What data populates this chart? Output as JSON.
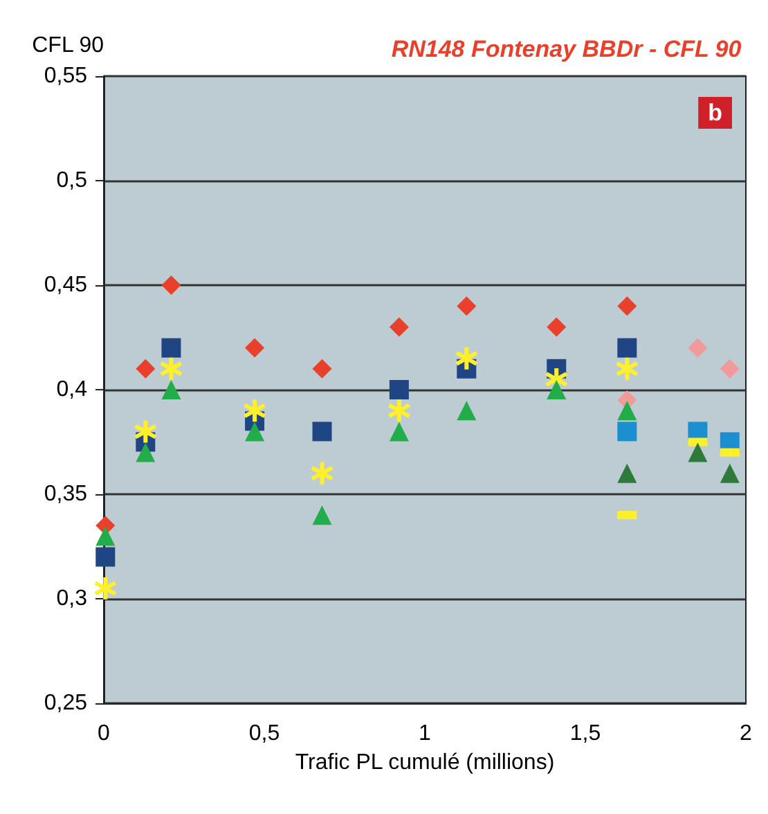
{
  "chart_data": {
    "type": "scatter",
    "title": "RN148 Fontenay BBDr - CFL 90",
    "xlabel": "Trafic PL cumulé (millions)",
    "ylabel": "CFL 90",
    "annotations": [
      "b"
    ],
    "xlim": [
      0,
      2
    ],
    "xticks": [
      0,
      {
        "value": 0.5,
        "label": "0,5"
      },
      1,
      {
        "value": 1.5,
        "label": "1,5"
      },
      2
    ],
    "ylim": [
      0.25,
      0.55
    ],
    "yticks": [
      {
        "value": 0.25,
        "label": "0,25"
      },
      {
        "value": 0.3,
        "label": "0,3"
      },
      {
        "value": 0.35,
        "label": "0,35"
      },
      {
        "value": 0.4,
        "label": "0,4"
      },
      {
        "value": 0.45,
        "label": "0,45"
      },
      {
        "value": 0.5,
        "label": "0,5"
      },
      {
        "value": 0.55,
        "label": "0,55"
      }
    ],
    "grid": "y",
    "series": [
      {
        "color": "#e8402a",
        "marker": "diamond",
        "x": [
          0.005,
          0.13,
          0.21,
          0.47,
          0.68,
          0.92,
          1.13,
          1.41,
          1.63
        ],
        "values": [
          0.335,
          0.41,
          0.45,
          0.42,
          0.41,
          0.43,
          0.44,
          0.43,
          0.44
        ]
      },
      {
        "color": "#f09a9a",
        "marker": "diamond",
        "x": [
          1.63,
          1.85,
          1.95
        ],
        "values": [
          0.395,
          0.42,
          0.41
        ]
      },
      {
        "color": "#1f4585",
        "marker": "square",
        "x": [
          0.005,
          0.13,
          0.21,
          0.47,
          0.68,
          0.92,
          1.13,
          1.41,
          1.63
        ],
        "values": [
          0.32,
          0.375,
          0.42,
          0.385,
          0.38,
          0.4,
          0.41,
          0.41,
          0.42
        ]
      },
      {
        "color": "#1b8fd0",
        "marker": "square",
        "x": [
          1.63,
          1.85,
          1.95
        ],
        "values": [
          0.38,
          0.38,
          0.375
        ]
      },
      {
        "color": "#fff02a",
        "marker": "cross",
        "x": [
          0.005,
          0.13,
          0.21,
          0.47,
          0.68,
          0.92,
          1.13,
          1.41,
          1.63
        ],
        "values": [
          0.305,
          0.38,
          0.41,
          0.39,
          0.36,
          0.39,
          0.415,
          0.405,
          0.41
        ]
      },
      {
        "color": "#fff02a",
        "x": [
          1.63,
          1.85,
          1.95
        ],
        "values": [
          0.34,
          0.375,
          0.37
        ]
      },
      {
        "color": "#22ac4a",
        "marker": "triangle",
        "x": [
          0.005,
          0.13,
          0.21,
          0.47,
          0.68,
          0.92,
          1.13,
          1.41,
          1.63
        ],
        "values": [
          0.33,
          0.37,
          0.4,
          0.38,
          0.34,
          0.38,
          0.39,
          0.4,
          0.39
        ]
      },
      {
        "color": "#2e7a3a",
        "marker": "triangle",
        "x": [
          1.63,
          1.85,
          1.95
        ],
        "values": [
          0.36,
          0.37,
          0.36
        ]
      }
    ]
  }
}
